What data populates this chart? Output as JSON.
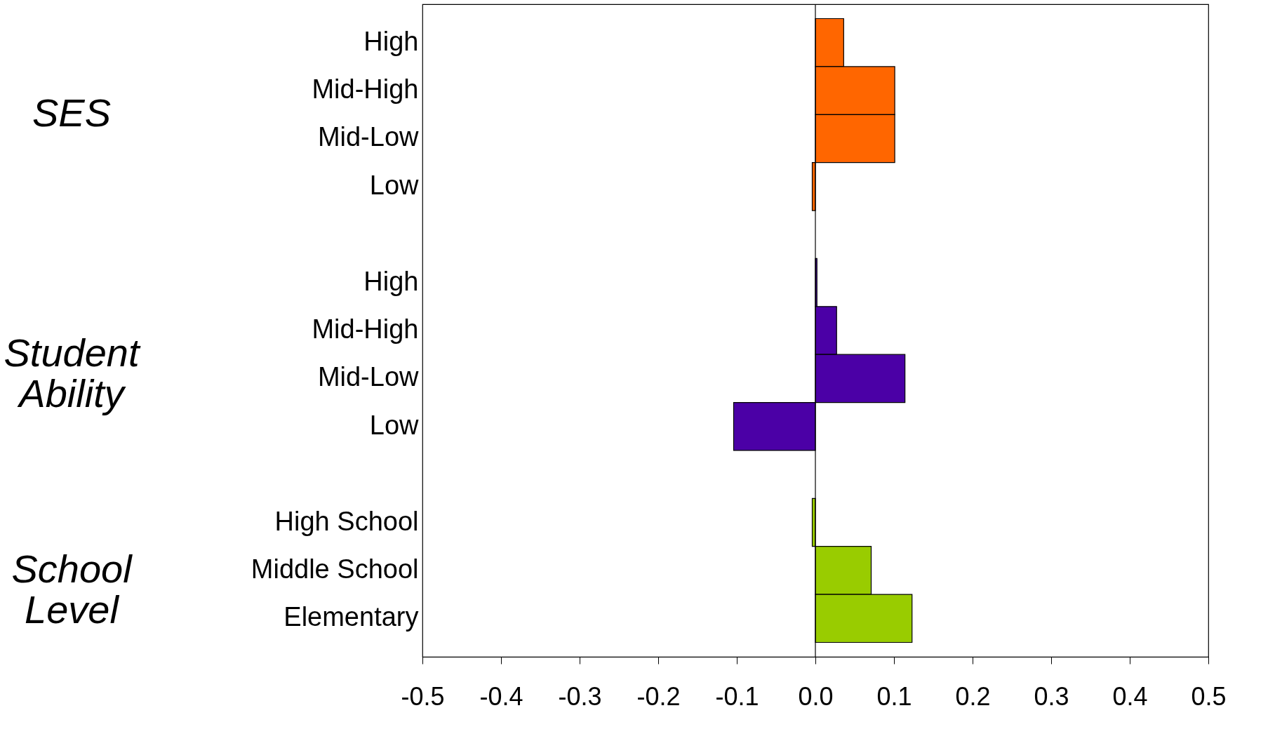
{
  "chart_data": {
    "type": "bar",
    "orientation": "horizontal",
    "categories": [
      "High",
      "Mid-High",
      "Mid-Low",
      "Low",
      null,
      "High",
      "Mid-High",
      "Mid-Low",
      "Low",
      null,
      "High School",
      "Middle School",
      "Elementary"
    ],
    "values": [
      0.036,
      0.101,
      0.101,
      -0.004,
      null,
      0.002,
      0.027,
      0.114,
      -0.104,
      null,
      -0.004,
      0.071,
      0.123
    ],
    "colors": [
      "#ff6600",
      "#ff6600",
      "#ff6600",
      "#ff6600",
      null,
      "#4b00a6",
      "#4b00a6",
      "#4b00a6",
      "#4b00a6",
      null,
      "#99cc00",
      "#99cc00",
      "#99cc00"
    ],
    "xlim": [
      -0.5,
      0.5
    ],
    "xticks": [
      {
        "value": -0.5,
        "label": "-0.5"
      },
      {
        "value": -0.4,
        "label": "-0.4"
      },
      {
        "value": -0.3,
        "label": "-0.3"
      },
      {
        "value": -0.2,
        "label": "-0.2"
      },
      {
        "value": -0.1,
        "label": "-0.1"
      },
      {
        "value": 0,
        "label": "0.0"
      },
      {
        "value": 0.1,
        "label": "0.1"
      },
      {
        "value": 0.2,
        "label": "0.2"
      },
      {
        "value": 0.3,
        "label": "0.3"
      },
      {
        "value": 0.4,
        "label": "0.4"
      },
      {
        "value": 0.5,
        "label": "0.5"
      }
    ],
    "ref_lines": [
      {
        "axis": "x",
        "value": 0,
        "color": "#000000"
      }
    ],
    "annotations": [
      "SES",
      "Student Ability",
      "School Level"
    ],
    "grid": false
  }
}
